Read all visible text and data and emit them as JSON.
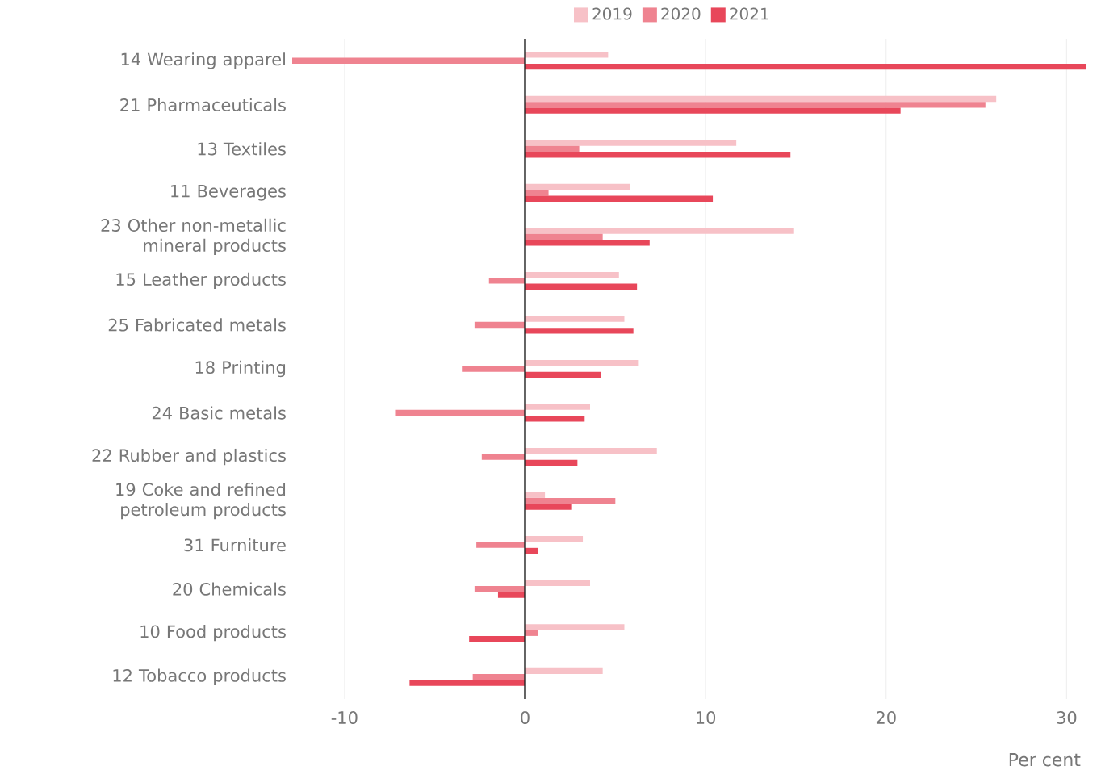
{
  "chart_data": {
    "type": "bar",
    "orientation": "horizontal",
    "xlabel": "Per cent",
    "categories": [
      "14 Wearing apparel",
      "21 Pharmaceuticals",
      "13 Textiles",
      "11 Beverages",
      "23 Other non-metallic mineral products",
      "15 Leather products",
      "25 Fabricated metals",
      "18 Printing",
      "24 Basic metals",
      "22 Rubber and plastics",
      "19 Coke and refined petroleum products",
      "31 Furniture",
      "20 Chemicals",
      "10 Food products",
      "12 Tobacco products"
    ],
    "series": [
      {
        "name": "2019",
        "color": "#f7c1c7",
        "values": [
          4.6,
          26.1,
          11.7,
          5.8,
          14.9,
          5.2,
          5.5,
          6.3,
          3.6,
          7.3,
          1.1,
          3.2,
          3.6,
          5.5,
          4.3
        ]
      },
      {
        "name": "2020",
        "color": "#ef8390",
        "values": [
          -12.9,
          25.5,
          3.0,
          1.3,
          4.3,
          -2.0,
          -2.8,
          -3.5,
          -7.2,
          -2.4,
          5.0,
          -2.7,
          -2.8,
          0.7,
          -2.9
        ]
      },
      {
        "name": "2021",
        "color": "#e8475a",
        "values": [
          31.1,
          20.8,
          14.7,
          10.4,
          6.9,
          6.2,
          6.0,
          4.2,
          3.3,
          2.9,
          2.6,
          0.7,
          -1.5,
          -3.1,
          -6.4
        ]
      }
    ],
    "xlim": [
      -12.9,
      31.1
    ],
    "xticks": [
      -10,
      0,
      10,
      20,
      30
    ],
    "ref_lines": [
      {
        "axis": "x",
        "value": 0,
        "color": "#222222"
      }
    ],
    "grid": "x",
    "legend": "top"
  }
}
